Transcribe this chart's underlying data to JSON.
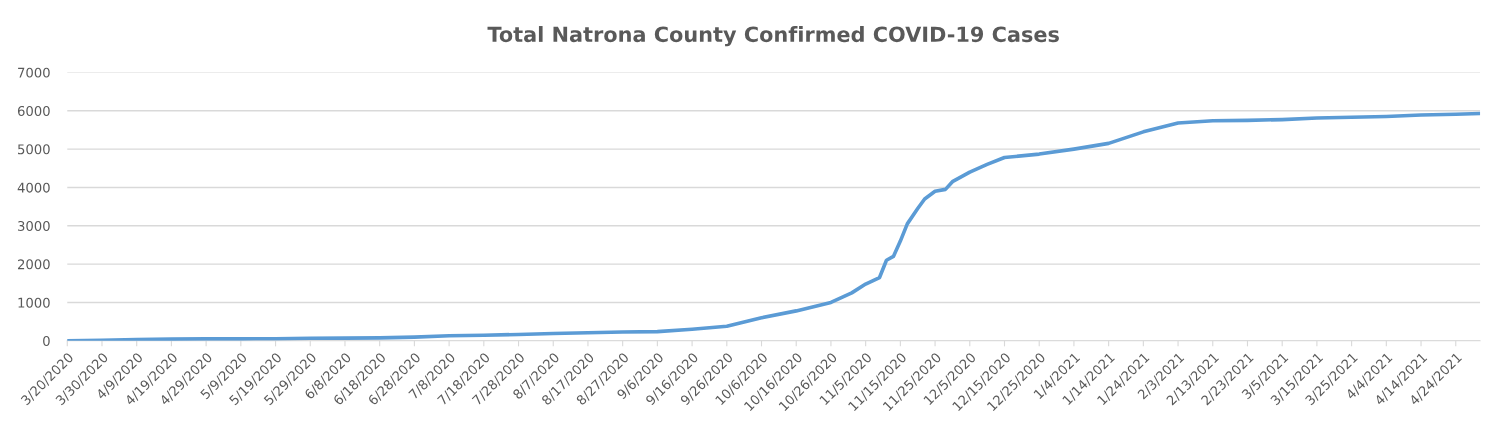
{
  "chart_data": {
    "type": "line",
    "title": "Total Natrona County Confirmed COVID-19 Cases",
    "x": [
      "2020-03-20",
      "2020-03-30",
      "2020-04-09",
      "2020-04-19",
      "2020-04-29",
      "2020-05-09",
      "2020-05-19",
      "2020-05-29",
      "2020-06-08",
      "2020-06-18",
      "2020-06-28",
      "2020-07-08",
      "2020-07-18",
      "2020-07-28",
      "2020-08-07",
      "2020-08-17",
      "2020-08-27",
      "2020-09-06",
      "2020-09-16",
      "2020-09-26",
      "2020-10-06",
      "2020-10-16",
      "2020-10-26",
      "2020-11-01",
      "2020-11-05",
      "2020-11-09",
      "2020-11-11",
      "2020-11-13",
      "2020-11-15",
      "2020-11-17",
      "2020-11-20",
      "2020-11-22",
      "2020-11-25",
      "2020-11-28",
      "2020-11-30",
      "2020-12-05",
      "2020-12-10",
      "2020-12-15",
      "2020-12-25",
      "2021-01-04",
      "2021-01-14",
      "2021-01-24",
      "2021-02-03",
      "2021-02-13",
      "2021-02-23",
      "2021-03-05",
      "2021-03-15",
      "2021-03-25",
      "2021-04-04",
      "2021-04-14",
      "2021-04-24",
      "2021-05-01"
    ],
    "series": [
      {
        "color": "#5b9bd5",
        "values": [
          0,
          10,
          30,
          45,
          50,
          50,
          55,
          65,
          70,
          75,
          95,
          130,
          145,
          165,
          190,
          210,
          230,
          240,
          300,
          380,
          600,
          780,
          1000,
          1250,
          1480,
          1650,
          2100,
          2200,
          2600,
          3050,
          3450,
          3700,
          3900,
          3950,
          4150,
          4400,
          4600,
          4780,
          4870,
          5000,
          5150,
          5450,
          5680,
          5740,
          5750,
          5770,
          5810,
          5830,
          5850,
          5890,
          5910,
          5930
        ]
      }
    ],
    "xlim": [
      "2020-03-20",
      "2021-05-01"
    ],
    "xticks": [
      {
        "value": "2020-03-20",
        "label": "3/20/2020"
      },
      {
        "value": "2020-03-30",
        "label": "3/30/2020"
      },
      {
        "value": "2020-04-09",
        "label": "4/9/2020"
      },
      {
        "value": "2020-04-19",
        "label": "4/19/2020"
      },
      {
        "value": "2020-04-29",
        "label": "4/29/2020"
      },
      {
        "value": "2020-05-09",
        "label": "5/9/2020"
      },
      {
        "value": "2020-05-19",
        "label": "5/19/2020"
      },
      {
        "value": "2020-05-29",
        "label": "5/29/2020"
      },
      {
        "value": "2020-06-08",
        "label": "6/8/2020"
      },
      {
        "value": "2020-06-18",
        "label": "6/18/2020"
      },
      {
        "value": "2020-06-28",
        "label": "6/28/2020"
      },
      {
        "value": "2020-07-08",
        "label": "7/8/2020"
      },
      {
        "value": "2020-07-18",
        "label": "7/18/2020"
      },
      {
        "value": "2020-07-28",
        "label": "7/28/2020"
      },
      {
        "value": "2020-08-07",
        "label": "8/7/2020"
      },
      {
        "value": "2020-08-17",
        "label": "8/17/2020"
      },
      {
        "value": "2020-08-27",
        "label": "8/27/2020"
      },
      {
        "value": "2020-09-06",
        "label": "9/6/2020"
      },
      {
        "value": "2020-09-16",
        "label": "9/16/2020"
      },
      {
        "value": "2020-09-26",
        "label": "9/26/2020"
      },
      {
        "value": "2020-10-06",
        "label": "10/6/2020"
      },
      {
        "value": "2020-10-16",
        "label": "10/16/2020"
      },
      {
        "value": "2020-10-26",
        "label": "10/26/2020"
      },
      {
        "value": "2020-11-05",
        "label": "11/5/2020"
      },
      {
        "value": "2020-11-15",
        "label": "11/15/2020"
      },
      {
        "value": "2020-11-25",
        "label": "11/25/2020"
      },
      {
        "value": "2020-12-05",
        "label": "12/5/2020"
      },
      {
        "value": "2020-12-15",
        "label": "12/15/2020"
      },
      {
        "value": "2020-12-25",
        "label": "12/25/2020"
      },
      {
        "value": "2021-01-04",
        "label": "1/4/2021"
      },
      {
        "value": "2021-01-14",
        "label": "1/14/2021"
      },
      {
        "value": "2021-01-24",
        "label": "1/24/2021"
      },
      {
        "value": "2021-02-03",
        "label": "2/3/2021"
      },
      {
        "value": "2021-02-13",
        "label": "2/13/2021"
      },
      {
        "value": "2021-02-23",
        "label": "2/23/2021"
      },
      {
        "value": "2021-03-05",
        "label": "3/5/2021"
      },
      {
        "value": "2021-03-15",
        "label": "3/15/2021"
      },
      {
        "value": "2021-03-25",
        "label": "3/25/2021"
      },
      {
        "value": "2021-04-04",
        "label": "4/4/2021"
      },
      {
        "value": "2021-04-14",
        "label": "4/14/2021"
      },
      {
        "value": "2021-04-24",
        "label": "4/24/2021"
      }
    ],
    "ylim": [
      0,
      7000
    ],
    "yticks": [
      0,
      1000,
      2000,
      3000,
      4000,
      5000,
      6000,
      7000
    ],
    "grid": "y",
    "marker": "none",
    "line_style": "solid"
  }
}
